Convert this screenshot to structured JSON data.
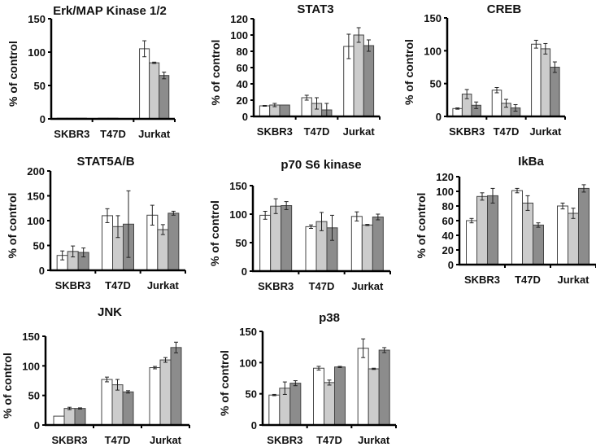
{
  "chart_data": [
    {
      "type": "bar",
      "title": "Erk/MAP Kinase 1/2",
      "ylabel": "% of control",
      "ylim": [
        0,
        150
      ],
      "yticks": [
        0,
        50,
        100,
        150
      ],
      "categories": [
        "SKBR3",
        "T47D",
        "Jurkat"
      ],
      "series": [
        {
          "name": "bar 1",
          "color": "#ffffff",
          "values": [
            1,
            1,
            105
          ],
          "errors": [
            0,
            0,
            12
          ]
        },
        {
          "name": "bar 2",
          "color": "#cccccc",
          "values": [
            1,
            1,
            84
          ],
          "errors": [
            0,
            0,
            1
          ]
        },
        {
          "name": "bar 3",
          "color": "#8c8c8c",
          "values": [
            1,
            0.5,
            65
          ],
          "errors": [
            0,
            0,
            5
          ]
        }
      ]
    },
    {
      "type": "bar",
      "title": "STAT3",
      "ylabel": "% of control",
      "ylim": [
        0,
        120
      ],
      "yticks": [
        0,
        20,
        40,
        60,
        80,
        100,
        120
      ],
      "categories": [
        "SKBR3",
        "T47D",
        "Jurkat"
      ],
      "series": [
        {
          "name": "bar 1",
          "color": "#ffffff",
          "values": [
            13,
            23,
            86
          ],
          "errors": [
            0.5,
            3,
            15
          ]
        },
        {
          "name": "bar 2",
          "color": "#cccccc",
          "values": [
            14,
            16,
            100
          ],
          "errors": [
            2,
            7,
            9
          ]
        },
        {
          "name": "bar 3",
          "color": "#8c8c8c",
          "values": [
            14,
            8,
            87
          ],
          "errors": [
            0,
            8,
            7
          ]
        }
      ]
    },
    {
      "type": "bar",
      "title": "CREB",
      "ylabel": "% of control",
      "ylim": [
        0,
        150
      ],
      "yticks": [
        0,
        50,
        100,
        150
      ],
      "categories": [
        "SKBR3",
        "T47D",
        "Jurkat"
      ],
      "series": [
        {
          "name": "bar 1",
          "color": "#ffffff",
          "values": [
            12,
            40,
            110
          ],
          "errors": [
            1,
            4,
            6
          ]
        },
        {
          "name": "bar 2",
          "color": "#cccccc",
          "values": [
            34,
            20,
            103
          ],
          "errors": [
            7,
            6,
            8
          ]
        },
        {
          "name": "bar 3",
          "color": "#8c8c8c",
          "values": [
            17,
            13,
            75
          ],
          "errors": [
            5,
            5,
            8
          ]
        }
      ]
    },
    {
      "type": "bar",
      "title": "STAT5A/B",
      "ylabel": "% of control",
      "ylim": [
        0,
        200
      ],
      "yticks": [
        0,
        50,
        100,
        150,
        200
      ],
      "categories": [
        "SKBR3",
        "T47D",
        "Jurkat"
      ],
      "series": [
        {
          "name": "bar 1",
          "color": "#ffffff",
          "values": [
            30,
            110,
            111
          ],
          "errors": [
            9,
            14,
            20
          ]
        },
        {
          "name": "bar 2",
          "color": "#cccccc",
          "values": [
            38,
            88,
            82
          ],
          "errors": [
            11,
            22,
            10
          ]
        },
        {
          "name": "bar 3",
          "color": "#8c8c8c",
          "values": [
            36,
            93,
            115
          ],
          "errors": [
            9,
            67,
            4
          ]
        }
      ]
    },
    {
      "type": "bar",
      "title": "p70 S6 kinase",
      "ylabel": "% of control",
      "ylim": [
        0,
        150
      ],
      "yticks": [
        0,
        50,
        100,
        150
      ],
      "categories": [
        "SKBR3",
        "T47D",
        "Jurkat"
      ],
      "series": [
        {
          "name": "bar 1",
          "color": "#ffffff",
          "values": [
            98,
            78,
            96
          ],
          "errors": [
            7,
            3,
            8
          ]
        },
        {
          "name": "bar 2",
          "color": "#cccccc",
          "values": [
            114,
            87,
            81
          ],
          "errors": [
            13,
            16,
            1
          ]
        },
        {
          "name": "bar 3",
          "color": "#8c8c8c",
          "values": [
            115,
            76,
            95
          ],
          "errors": [
            7,
            22,
            5
          ]
        }
      ]
    },
    {
      "type": "bar",
      "title": "IkBa",
      "ylabel": "% of control",
      "ylim": [
        0,
        120
      ],
      "yticks": [
        0,
        20,
        40,
        60,
        80,
        100,
        120
      ],
      "categories": [
        "SKBR3",
        "T47D",
        "Jurkat"
      ],
      "series": [
        {
          "name": "bar 1",
          "color": "#ffffff",
          "values": [
            60,
            101,
            80
          ],
          "errors": [
            3,
            3,
            4
          ]
        },
        {
          "name": "bar 2",
          "color": "#cccccc",
          "values": [
            93,
            84,
            70
          ],
          "errors": [
            5,
            10,
            7
          ]
        },
        {
          "name": "bar 3",
          "color": "#8c8c8c",
          "values": [
            94,
            54,
            104
          ],
          "errors": [
            10,
            3,
            5
          ]
        }
      ]
    },
    {
      "type": "bar",
      "title": "JNK",
      "ylabel": "% of control",
      "ylim": [
        0,
        150
      ],
      "yticks": [
        0,
        50,
        100,
        150
      ],
      "categories": [
        "SKBR3",
        "T47D",
        "Jurkat"
      ],
      "series": [
        {
          "name": "bar 1",
          "color": "#ffffff",
          "values": [
            15,
            77,
            97
          ],
          "errors": [
            0,
            4,
            2
          ]
        },
        {
          "name": "bar 2",
          "color": "#cccccc",
          "values": [
            28,
            68,
            110
          ],
          "errors": [
            2,
            9,
            4
          ]
        },
        {
          "name": "bar 3",
          "color": "#8c8c8c",
          "values": [
            28,
            56,
            131
          ],
          "errors": [
            1,
            2,
            9
          ]
        }
      ]
    },
    {
      "type": "bar",
      "title": "p38",
      "ylabel": "% of control",
      "ylim": [
        0,
        150
      ],
      "yticks": [
        0,
        50,
        100,
        150
      ],
      "categories": [
        "SKBR3",
        "T47D",
        "Jurkat"
      ],
      "series": [
        {
          "name": "bar 1",
          "color": "#ffffff",
          "values": [
            48,
            91,
            123
          ],
          "errors": [
            1,
            3,
            15
          ]
        },
        {
          "name": "bar 2",
          "color": "#cccccc",
          "values": [
            59,
            68,
            90
          ],
          "errors": [
            10,
            4,
            1
          ]
        },
        {
          "name": "bar 3",
          "color": "#8c8c8c",
          "values": [
            67,
            93,
            120
          ],
          "errors": [
            4,
            1,
            4
          ]
        }
      ]
    }
  ]
}
